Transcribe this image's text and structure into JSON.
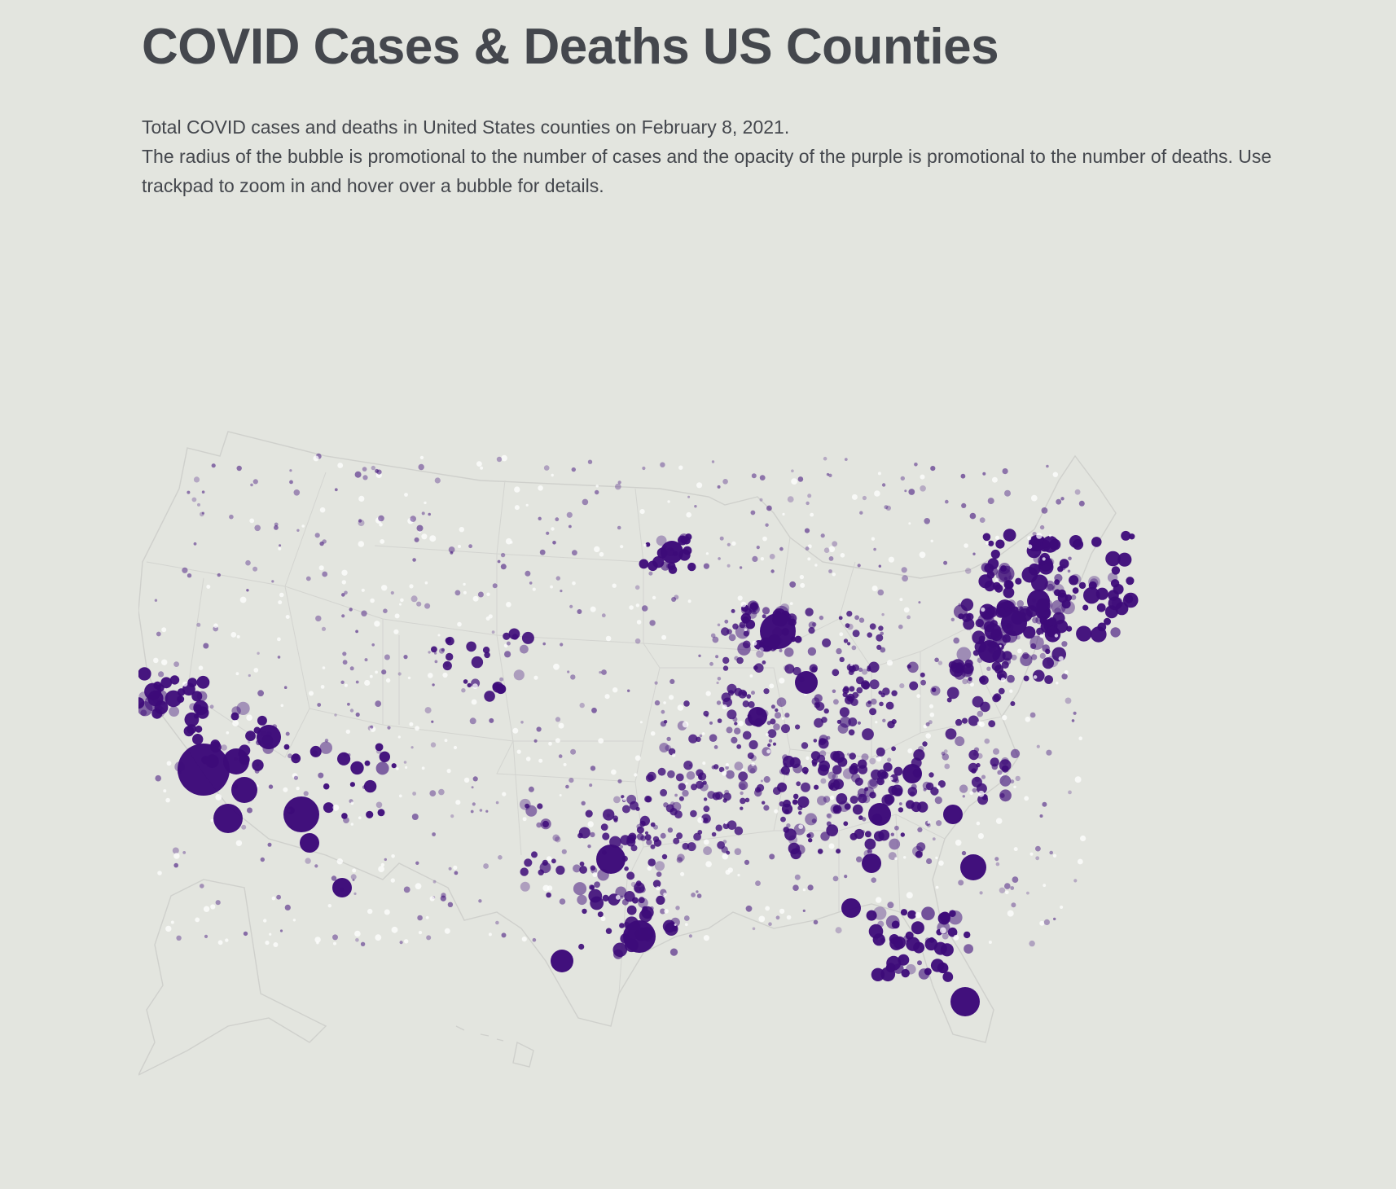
{
  "header": {
    "title": "COVID Cases & Deaths US Counties",
    "description_line1": "Total COVID cases and deaths in United States counties on February 8, 2021.",
    "description_line2": "The radius of the bubble is promotional to the number of cases and the opacity of the purple is promotional to the number of deaths. Use trackpad to zoom in and hover over a bubble for details."
  },
  "map": {
    "bubble_color": "#3d0b79",
    "border_color": "#cfd0cc",
    "background": "#e3e5df"
  }
}
